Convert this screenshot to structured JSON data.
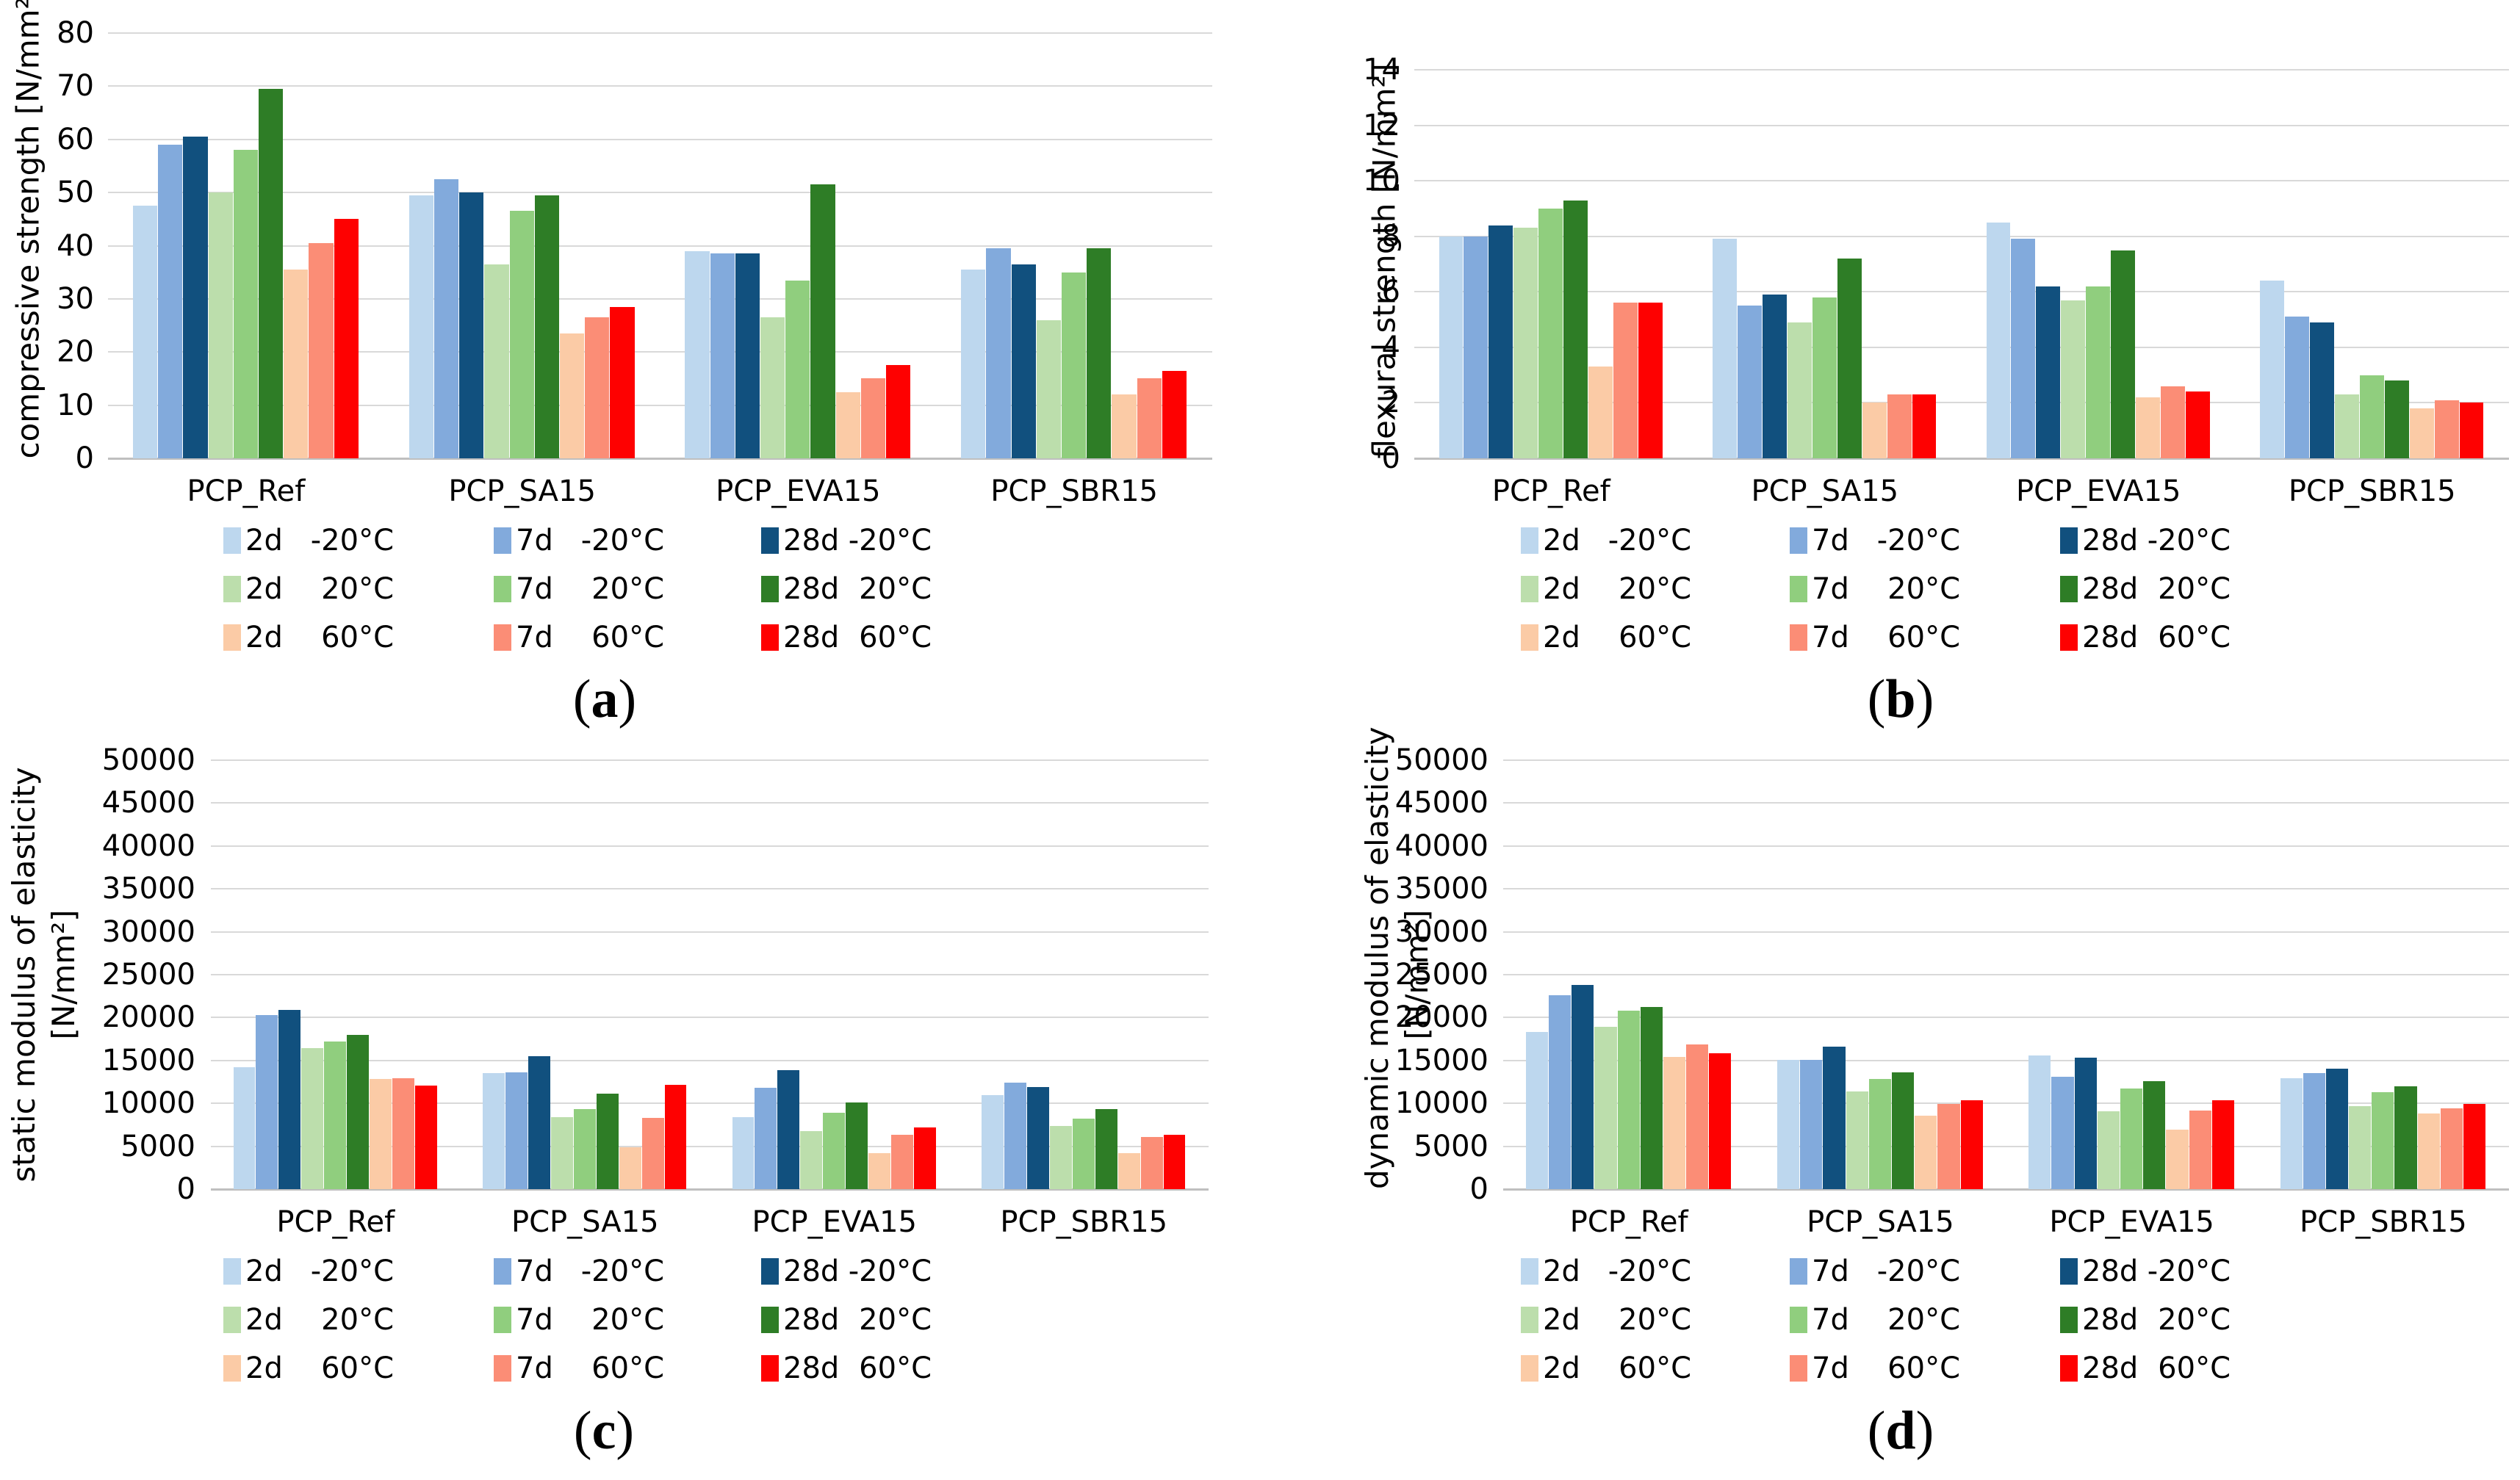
{
  "figure": {
    "caption_open": "(",
    "caption_close": ")"
  },
  "chart_data": [
    {
      "type": "bar",
      "panel": "a",
      "ylabel": "compressive strength [N/mm²]",
      "ylabel_lines": [
        "compressive strength [N/mm²]"
      ],
      "ylim": [
        0,
        80
      ],
      "ystep": 10,
      "grid": true,
      "legend_position": "bottom",
      "categories": [
        "PCP_Ref",
        "PCP_SA15",
        "PCP_EVA15",
        "PCP_SBR15"
      ],
      "series": [
        {
          "name": "2d -20°C",
          "day": "2d",
          "temp": "-20°C",
          "color": "#BDD7EE",
          "values": [
            47.5,
            49.5,
            39.0,
            35.5
          ]
        },
        {
          "name": "7d -20°C",
          "day": "7d",
          "temp": "-20°C",
          "color": "#82AADC",
          "values": [
            59.0,
            52.5,
            38.5,
            39.5
          ]
        },
        {
          "name": "28d -20°C",
          "day": "28d",
          "temp": "-20°C",
          "color": "#11507E",
          "values": [
            60.5,
            50.0,
            38.5,
            36.5
          ]
        },
        {
          "name": "2d 20°C",
          "day": "2d",
          "temp": "20°C",
          "color": "#BCDEAC",
          "values": [
            50.0,
            36.5,
            26.5,
            26.0
          ]
        },
        {
          "name": "7d 20°C",
          "day": "7d",
          "temp": "20°C",
          "color": "#90CE7E",
          "values": [
            58.0,
            46.5,
            33.5,
            35.0
          ]
        },
        {
          "name": "28d 20°C",
          "day": "28d",
          "temp": "20°C",
          "color": "#2E7D26",
          "values": [
            69.5,
            49.5,
            51.5,
            39.5
          ]
        },
        {
          "name": "2d 60°C",
          "day": "2d",
          "temp": "60°C",
          "color": "#FBCBA6",
          "values": [
            35.5,
            23.5,
            12.5,
            12.0
          ]
        },
        {
          "name": "7d 60°C",
          "day": "7d",
          "temp": "60°C",
          "color": "#FB8D76",
          "values": [
            40.5,
            26.5,
            15.0,
            15.0
          ]
        },
        {
          "name": "28d 60°C",
          "day": "28d",
          "temp": "60°C",
          "color": "#FE0101",
          "values": [
            45.0,
            28.5,
            17.5,
            16.5
          ]
        }
      ]
    },
    {
      "type": "bar",
      "panel": "b",
      "ylabel": "flexural strength [N/mm²]",
      "ylabel_lines": [
        "flexural strength [N/mm²]"
      ],
      "ylim": [
        0,
        14
      ],
      "ystep": 2,
      "grid": true,
      "legend_position": "bottom",
      "categories": [
        "PCP_Ref",
        "PCP_SA15",
        "PCP_EVA15",
        "PCP_SBR15"
      ],
      "series": [
        {
          "name": "2d -20°C",
          "day": "2d",
          "temp": "-20°C",
          "color": "#BDD7EE",
          "values": [
            8.0,
            7.9,
            8.5,
            6.4
          ]
        },
        {
          "name": "7d -20°C",
          "day": "7d",
          "temp": "-20°C",
          "color": "#82AADC",
          "values": [
            8.0,
            5.5,
            7.9,
            5.1
          ]
        },
        {
          "name": "28d -20°C",
          "day": "28d",
          "temp": "-20°C",
          "color": "#11507E",
          "values": [
            8.4,
            5.9,
            6.2,
            4.9
          ]
        },
        {
          "name": "2d 20°C",
          "day": "2d",
          "temp": "20°C",
          "color": "#BCDEAC",
          "values": [
            8.3,
            4.9,
            5.7,
            2.3
          ]
        },
        {
          "name": "7d 20°C",
          "day": "7d",
          "temp": "20°C",
          "color": "#90CE7E",
          "values": [
            9.0,
            5.8,
            6.2,
            3.0
          ]
        },
        {
          "name": "28d 20°C",
          "day": "28d",
          "temp": "20°C",
          "color": "#2E7D26",
          "values": [
            9.3,
            7.2,
            7.5,
            2.8
          ]
        },
        {
          "name": "2d 60°C",
          "day": "2d",
          "temp": "60°C",
          "color": "#FBCBA6",
          "values": [
            3.3,
            2.0,
            2.2,
            1.8
          ]
        },
        {
          "name": "7d 60°C",
          "day": "7d",
          "temp": "60°C",
          "color": "#FB8D76",
          "values": [
            5.6,
            2.3,
            2.6,
            2.1
          ]
        },
        {
          "name": "28d 60°C",
          "day": "28d",
          "temp": "60°C",
          "color": "#FE0101",
          "values": [
            5.6,
            2.3,
            2.4,
            2.0
          ]
        }
      ]
    },
    {
      "type": "bar",
      "panel": "c",
      "ylabel": "static modulus of elasticity [N/mm²]",
      "ylabel_lines": [
        "static modulus of elasticity",
        "[N/mm²]"
      ],
      "ylim": [
        0,
        50000
      ],
      "ystep": 5000,
      "grid": true,
      "legend_position": "bottom",
      "categories": [
        "PCP_Ref",
        "PCP_SA15",
        "PCP_EVA15",
        "PCP_SBR15"
      ],
      "series": [
        {
          "name": "2d -20°C",
          "day": "2d",
          "temp": "-20°C",
          "color": "#BDD7EE",
          "values": [
            14200,
            13500,
            8400,
            11000
          ]
        },
        {
          "name": "7d -20°C",
          "day": "7d",
          "temp": "-20°C",
          "color": "#82AADC",
          "values": [
            20300,
            13600,
            11800,
            12400
          ]
        },
        {
          "name": "28d -20°C",
          "day": "28d",
          "temp": "-20°C",
          "color": "#11507E",
          "values": [
            20900,
            15500,
            13900,
            11900
          ]
        },
        {
          "name": "2d 20°C",
          "day": "2d",
          "temp": "20°C",
          "color": "#BCDEAC",
          "values": [
            16400,
            8400,
            6800,
            7400
          ]
        },
        {
          "name": "7d 20°C",
          "day": "7d",
          "temp": "20°C",
          "color": "#90CE7E",
          "values": [
            17200,
            9300,
            8900,
            8200
          ]
        },
        {
          "name": "28d 20°C",
          "day": "28d",
          "temp": "20°C",
          "color": "#2E7D26",
          "values": [
            18000,
            11100,
            10100,
            9300
          ]
        },
        {
          "name": "2d 60°C",
          "day": "2d",
          "temp": "60°C",
          "color": "#FBCBA6",
          "values": [
            12800,
            4900,
            4200,
            4200
          ]
        },
        {
          "name": "7d 60°C",
          "day": "7d",
          "temp": "60°C",
          "color": "#FB8D76",
          "values": [
            12900,
            8300,
            6300,
            6100
          ]
        },
        {
          "name": "28d 60°C",
          "day": "28d",
          "temp": "60°C",
          "color": "#FE0101",
          "values": [
            12100,
            12200,
            7200,
            6300
          ]
        }
      ]
    },
    {
      "type": "bar",
      "panel": "d",
      "ylabel": "dynamic modulus of elasticity [N/mm²]",
      "ylabel_lines": [
        "dynamic modulus of elasticity",
        "[N/mm²]"
      ],
      "ylim": [
        0,
        50000
      ],
      "ystep": 5000,
      "grid": true,
      "legend_position": "bottom",
      "categories": [
        "PCP_Ref",
        "PCP_SA15",
        "PCP_EVA15",
        "PCP_SBR15"
      ],
      "series": [
        {
          "name": "2d -20°C",
          "day": "2d",
          "temp": "-20°C",
          "color": "#BDD7EE",
          "values": [
            18300,
            15100,
            15600,
            12900
          ]
        },
        {
          "name": "7d -20°C",
          "day": "7d",
          "temp": "-20°C",
          "color": "#82AADC",
          "values": [
            22600,
            15100,
            13100,
            13500
          ]
        },
        {
          "name": "28d -20°C",
          "day": "28d",
          "temp": "-20°C",
          "color": "#11507E",
          "values": [
            23800,
            16600,
            15300,
            14000
          ]
        },
        {
          "name": "2d 20°C",
          "day": "2d",
          "temp": "20°C",
          "color": "#BCDEAC",
          "values": [
            18900,
            11400,
            9100,
            9700
          ]
        },
        {
          "name": "7d 20°C",
          "day": "7d",
          "temp": "20°C",
          "color": "#90CE7E",
          "values": [
            20800,
            12800,
            11700,
            11300
          ]
        },
        {
          "name": "28d 20°C",
          "day": "28d",
          "temp": "20°C",
          "color": "#2E7D26",
          "values": [
            21200,
            13600,
            12600,
            12000
          ]
        },
        {
          "name": "2d 60°C",
          "day": "2d",
          "temp": "60°C",
          "color": "#FBCBA6",
          "values": [
            15400,
            8600,
            6900,
            8800
          ]
        },
        {
          "name": "7d 60°C",
          "day": "7d",
          "temp": "60°C",
          "color": "#FB8D76",
          "values": [
            16900,
            9900,
            9200,
            9400
          ]
        },
        {
          "name": "28d 60°C",
          "day": "28d",
          "temp": "60°C",
          "color": "#FE0101",
          "values": [
            15800,
            10400,
            10400,
            9900
          ]
        }
      ]
    }
  ]
}
